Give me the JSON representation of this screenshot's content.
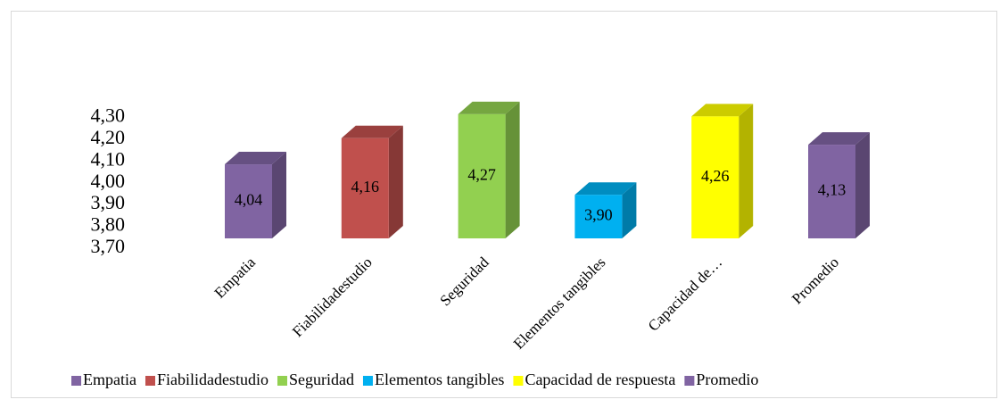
{
  "chart_data": {
    "type": "bar3d",
    "categories": [
      "Empatia",
      "Fiabilidadestudio",
      "Seguridad",
      "Elementos tangibles",
      "Capacidad de…",
      "Promedio"
    ],
    "values": [
      4.04,
      4.16,
      4.27,
      3.9,
      4.26,
      4.13
    ],
    "value_labels": [
      "4,04",
      "4,16",
      "4,27",
      "3,90",
      "4,26",
      "4,13"
    ],
    "colors": [
      "#8064a2",
      "#c0504d",
      "#92d050",
      "#00b0f0",
      "#ffff00",
      "#8064a2"
    ],
    "legend_labels": [
      "Empatia",
      "Fiabilidadestudio",
      "Seguridad",
      "Elementos tangibles",
      "Capacidad de respuesta",
      "Promedio"
    ],
    "ylim": [
      3.7,
      4.3
    ],
    "yticks": [
      {
        "value": 3.7,
        "label": "3,70"
      },
      {
        "value": 3.8,
        "label": "3,80"
      },
      {
        "value": 3.9,
        "label": "3,90"
      },
      {
        "value": 4.0,
        "label": "4,00"
      },
      {
        "value": 4.1,
        "label": "4,10"
      },
      {
        "value": 4.2,
        "label": "4,20"
      },
      {
        "value": 4.3,
        "label": "4,30"
      }
    ],
    "legend": "bottom"
  }
}
